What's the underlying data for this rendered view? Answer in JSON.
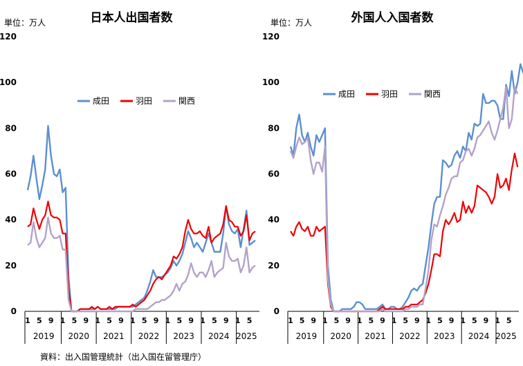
{
  "source": "資料：出入国管理統計（出入国在留管理庁）",
  "chart_data": [
    {
      "type": "line",
      "title": "日本人出国者数",
      "unit_label": "単位：万人",
      "ylim": [
        0,
        120
      ],
      "yticks": [
        0,
        20,
        40,
        60,
        80,
        100,
        120
      ],
      "month_ticks": [
        "1",
        "5",
        "9"
      ],
      "year_labels": [
        "2019",
        "2020",
        "2021",
        "2022",
        "2023",
        "2024",
        "2025"
      ],
      "legend_position": "top-center",
      "grid": false,
      "x_start": "2019-01",
      "series": [
        {
          "name": "成田",
          "color": "#5b8fd0",
          "values": [
            53,
            59,
            68,
            58,
            49,
            55,
            62,
            81,
            68,
            60,
            59,
            62,
            52,
            54,
            15,
            0,
            0,
            0,
            1,
            1,
            1,
            1,
            1,
            1,
            2,
            1,
            1,
            1,
            1,
            1,
            1,
            2,
            2,
            2,
            2,
            2,
            2,
            3,
            4,
            5,
            6,
            9,
            13,
            18,
            15,
            15,
            15,
            16,
            17,
            19,
            22,
            20,
            22,
            25,
            30,
            35,
            32,
            28,
            30,
            28,
            26,
            30,
            34,
            30,
            26,
            26,
            26,
            34,
            46,
            38,
            35,
            34,
            36,
            28,
            36,
            44,
            29,
            30,
            31
          ]
        },
        {
          "name": "羽田",
          "color": "#ee0000",
          "values": [
            37,
            38,
            45,
            40,
            36,
            40,
            42,
            48,
            42,
            41,
            41,
            40,
            34,
            34,
            10,
            0,
            0,
            0,
            1,
            1,
            1,
            1,
            2,
            1,
            2,
            1,
            1,
            1,
            2,
            1,
            2,
            2,
            2,
            2,
            2,
            2,
            3,
            2,
            3,
            4,
            5,
            7,
            9,
            12,
            14,
            15,
            14,
            16,
            18,
            20,
            24,
            23,
            25,
            28,
            35,
            40,
            36,
            34,
            34,
            35,
            33,
            32,
            37,
            30,
            32,
            33,
            34,
            38,
            46,
            40,
            39,
            37,
            37,
            33,
            35,
            42,
            31,
            34,
            35
          ]
        },
        {
          "name": "関西",
          "color": "#b3a2c8",
          "values": [
            29,
            30,
            39,
            32,
            28,
            30,
            32,
            41,
            34,
            32,
            32,
            33,
            27,
            27,
            5,
            0,
            0,
            0,
            0,
            0,
            0,
            0,
            0,
            0,
            0,
            0,
            0,
            0,
            0,
            0,
            0,
            0,
            0,
            0,
            0,
            0,
            0,
            1,
            1,
            1,
            1,
            1,
            2,
            3,
            4,
            4,
            5,
            5,
            6,
            7,
            9,
            12,
            9,
            12,
            13,
            16,
            21,
            17,
            15,
            17,
            17,
            15,
            18,
            22,
            15,
            17,
            18,
            19,
            30,
            24,
            22,
            22,
            23,
            17,
            20,
            28,
            17,
            19,
            20
          ]
        }
      ]
    },
    {
      "type": "line",
      "title": "外国人入国者数",
      "unit_label": "単位：万人",
      "ylim": [
        0,
        120
      ],
      "yticks": [
        0,
        20,
        40,
        60,
        80,
        100,
        120
      ],
      "month_ticks": [
        "1",
        "5",
        "9"
      ],
      "year_labels": [
        "2019",
        "2020",
        "2021",
        "2022",
        "2023",
        "2024",
        "2025"
      ],
      "legend_position": "top-center",
      "grid": false,
      "x_start": "2019-01",
      "series": [
        {
          "name": "成田",
          "color": "#5b8fd0",
          "values": [
            72,
            68,
            80,
            86,
            77,
            74,
            78,
            72,
            68,
            77,
            74,
            77,
            80,
            20,
            5,
            0,
            0,
            0,
            1,
            1,
            1,
            1,
            2,
            4,
            4,
            3,
            1,
            1,
            1,
            1,
            1,
            2,
            3,
            1,
            1,
            2,
            2,
            1,
            1,
            2,
            4,
            6,
            9,
            10,
            9,
            11,
            12,
            20,
            28,
            38,
            47,
            50,
            50,
            66,
            65,
            63,
            64,
            68,
            70,
            67,
            72,
            70,
            78,
            75,
            82,
            81,
            82,
            95,
            91,
            91,
            92,
            92,
            90,
            84,
            84,
            99,
            94,
            105,
            95,
            100,
            108,
            104
          ]
        },
        {
          "name": "羽田",
          "color": "#ee0000",
          "values": [
            35,
            33,
            37,
            39,
            36,
            35,
            37,
            33,
            33,
            37,
            35,
            36,
            37,
            12,
            2,
            0,
            0,
            0,
            0,
            0,
            0,
            0,
            0,
            0,
            0,
            0,
            0,
            0,
            0,
            0,
            0,
            1,
            2,
            1,
            1,
            1,
            1,
            1,
            1,
            1,
            2,
            2,
            3,
            3,
            3,
            4,
            5,
            8,
            12,
            18,
            25,
            25,
            24,
            35,
            40,
            38,
            40,
            43,
            39,
            40,
            48,
            43,
            46,
            43,
            46,
            55,
            54,
            53,
            52,
            50,
            47,
            50,
            60,
            54,
            55,
            58,
            53,
            62,
            69,
            63
          ]
        },
        {
          "name": "関西",
          "color": "#b3a2c8",
          "values": [
            70,
            67,
            72,
            76,
            73,
            74,
            76,
            66,
            60,
            65,
            65,
            61,
            72,
            14,
            3,
            0,
            0,
            0,
            0,
            0,
            0,
            0,
            0,
            0,
            0,
            0,
            0,
            0,
            0,
            0,
            0,
            0,
            1,
            0,
            0,
            0,
            0,
            0,
            0,
            0,
            1,
            1,
            2,
            2,
            2,
            3,
            3,
            10,
            18,
            31,
            38,
            37,
            42,
            46,
            51,
            54,
            58,
            59,
            59,
            65,
            66,
            70,
            71,
            68,
            71,
            76,
            77,
            79,
            81,
            83,
            78,
            75,
            79,
            84,
            89,
            98,
            80,
            84,
            98,
            95
          ]
        }
      ]
    }
  ]
}
